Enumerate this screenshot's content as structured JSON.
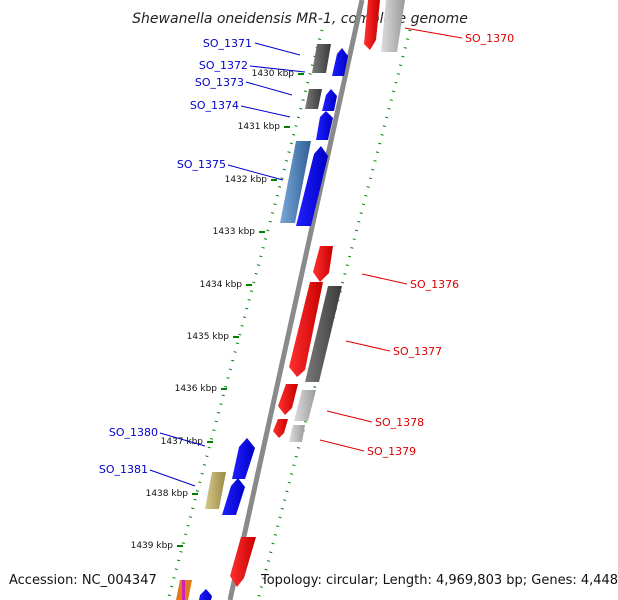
{
  "title": "Shewanella oneidensis MR-1, complete genome",
  "footer": {
    "accession": "Accession: NC_004347",
    "topology": "Topology: circular; Length: 4,969,803 bp; Genes: 4,448"
  },
  "ticks": [
    "1430 kbp",
    "1431 kbp",
    "1432 kbp",
    "1433 kbp",
    "1434 kbp",
    "1435 kbp",
    "1436 kbp",
    "1437 kbp",
    "1438 kbp",
    "1439 kbp"
  ],
  "genes": [
    {
      "label": "SO_1370",
      "strand": "reverse",
      "color": "#e00000"
    },
    {
      "label": "SO_1371",
      "strand": "forward",
      "color": "#0000ee"
    },
    {
      "label": "SO_1372",
      "strand": "forward",
      "color": "#0000ee"
    },
    {
      "label": "SO_1373",
      "strand": "forward",
      "color": "#0000ee"
    },
    {
      "label": "SO_1374",
      "strand": "forward",
      "color": "#0000ee"
    },
    {
      "label": "SO_1375",
      "strand": "forward",
      "color": "#0000ee"
    },
    {
      "label": "SO_1376",
      "strand": "reverse",
      "color": "#e00000"
    },
    {
      "label": "SO_1377",
      "strand": "reverse",
      "color": "#e00000"
    },
    {
      "label": "SO_1378",
      "strand": "reverse",
      "color": "#e00000"
    },
    {
      "label": "SO_1379",
      "strand": "reverse",
      "color": "#e00000"
    },
    {
      "label": "SO_1380",
      "strand": "forward",
      "color": "#0000ee"
    },
    {
      "label": "SO_1381",
      "strand": "forward",
      "color": "#0000ee"
    }
  ],
  "colors": {
    "forward_label": "#0000cc",
    "reverse_label": "#dd0000",
    "backbone": "#888888",
    "tick_marks": "#008000",
    "cog_dark": "#555555",
    "cog_light": "#b5b5b5",
    "cog_steelblue": "#4a7fb5",
    "cog_khaki": "#b8a860"
  }
}
